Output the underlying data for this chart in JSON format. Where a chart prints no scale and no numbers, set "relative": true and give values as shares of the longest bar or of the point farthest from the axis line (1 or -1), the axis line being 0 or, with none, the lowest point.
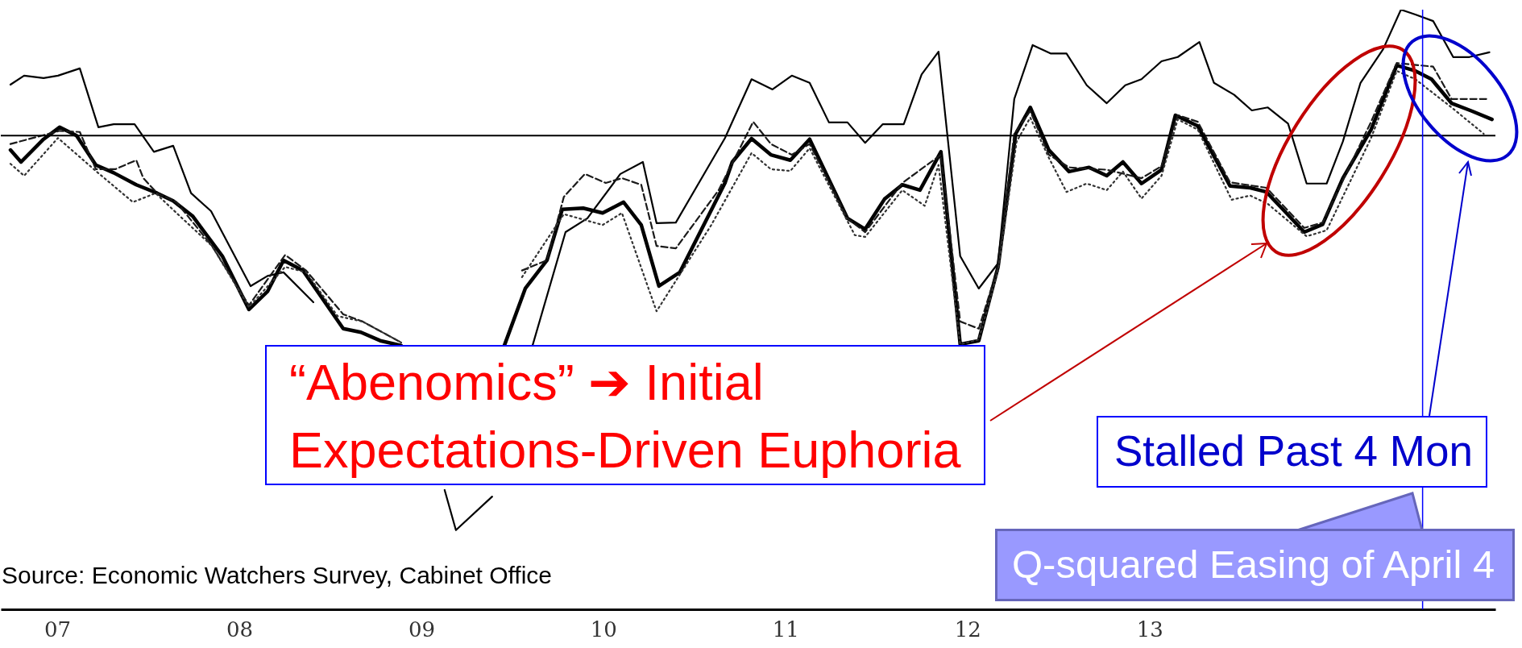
{
  "chart_data": {
    "type": "line",
    "relative": true,
    "xlim": [
      2006.69,
      2014.9
    ],
    "xticks": [
      {
        "value": 2007,
        "label": "07"
      },
      {
        "value": 2008,
        "label": "08"
      },
      {
        "value": 2009,
        "label": "09"
      },
      {
        "value": 2010,
        "label": "10"
      },
      {
        "value": 2011,
        "label": "11"
      },
      {
        "value": 2012,
        "label": "12"
      },
      {
        "value": 2013,
        "label": "13"
      }
    ],
    "series": [
      {
        "color": "#000000",
        "line_style": "solid",
        "x": [
          2006.743,
          2006.818,
          2006.925,
          2007.004,
          2007.124,
          2007.226,
          2007.31,
          2007.425,
          2007.531,
          2007.637,
          2007.735,
          2007.845,
          2008.062,
          2008.155,
          2008.243,
          2008.407,
          2008.531,
          2008.83,
          2009.128,
          2009.19,
          2009.389,
          2009.5,
          2009.611,
          2009.792,
          2009.912,
          2010.093,
          2010.217,
          2010.292,
          2010.398,
          2010.668,
          2010.814,
          2010.929,
          2011.035,
          2011.133,
          2011.239,
          2011.341,
          2011.438,
          2011.535,
          2011.65,
          2011.748,
          2011.841,
          2011.96,
          2012.062,
          2012.168,
          2012.257,
          2012.358,
          2012.456,
          2012.544,
          2012.655,
          2012.765,
          2012.867,
          2012.956,
          2013.066,
          2013.155,
          2013.274,
          2013.354,
          2013.465,
          2013.562,
          2013.65,
          2013.761,
          2013.863,
          2013.973,
          2014.062,
          2014.159,
          2014.283,
          2014.381,
          2014.46,
          2014.558,
          2014.668,
          2014.757,
          2014.867
        ],
        "values": [
          0.875,
          0.89,
          0.886,
          0.89,
          0.902,
          0.804,
          0.809,
          0.809,
          0.763,
          0.773,
          0.694,
          0.664,
          0.539,
          0.556,
          0.562,
          0.512,
          null,
          null,
          0.199,
          0.132,
          0.188,
          null,
          0.44,
          0.629,
          0.652,
          0.726,
          0.746,
          0.644,
          0.645,
          0.786,
          0.884,
          0.867,
          0.89,
          0.878,
          0.812,
          0.812,
          0.778,
          0.809,
          0.809,
          0.892,
          0.93,
          0.589,
          0.535,
          0.577,
          0.851,
          0.941,
          0.927,
          0.927,
          0.874,
          0.844,
          0.874,
          0.884,
          0.914,
          0.921,
          0.946,
          0.878,
          0.858,
          0.832,
          0.837,
          0.81,
          0.71,
          0.71,
          0.78,
          0.878,
          0.934,
          1,
          0.992,
          0.981,
          0.921,
          0.921,
          0.929
        ]
      },
      {
        "color": "#000000",
        "line_style": "solid",
        "x": [
          2006.743,
          2006.801,
          2006.925,
          2007.013,
          2007.106,
          2007.212,
          2007.31,
          2007.434,
          2007.549,
          2007.637,
          2007.743,
          2007.907,
          2008.053,
          2008.155,
          2008.243,
          2008.35,
          2008.571,
          2008.668,
          2008.774,
          2008.889,
          2009.17,
          2009.456,
          2009.571,
          2009.69,
          2009.774,
          2009.889,
          2009.996,
          2010.111,
          2010.208,
          2010.305,
          2010.42,
          2010.668,
          2010.708,
          2010.814,
          2010.92,
          2011.027,
          2011.133,
          2011.341,
          2011.438,
          2011.544,
          2011.642,
          2011.739,
          2011.854,
          2011.96,
          2012.062,
          2012.168,
          2012.265,
          2012.345,
          2012.447,
          2012.558,
          2012.668,
          2012.765,
          2012.854,
          2012.956,
          2013.066,
          2013.142,
          2013.265,
          2013.442,
          2013.553,
          2013.642,
          2013.739,
          2013.85,
          2013.951,
          2014.062,
          2014.217,
          2014.358,
          2014.46,
          2014.549,
          2014.659,
          2014.77,
          2014.881
        ],
        "values": [
          0.766,
          0.746,
          0.784,
          0.804,
          0.79,
          0.741,
          0.728,
          0.708,
          0.694,
          0.681,
          0.656,
          0.589,
          0.5,
          0.53,
          0.582,
          0.565,
          0.468,
          0.462,
          0.448,
          0.44,
          null,
          0.44,
          0.535,
          0.582,
          0.667,
          0.669,
          0.661,
          0.679,
          0.641,
          0.539,
          0.562,
          0.711,
          0.746,
          0.785,
          0.758,
          0.749,
          0.784,
          0.652,
          0.634,
          0.684,
          0.708,
          0.699,
          0.763,
          0.442,
          0.448,
          0.571,
          0.793,
          0.837,
          0.766,
          0.73,
          0.737,
          0.723,
          0.746,
          0.71,
          0.733,
          0.824,
          0.806,
          0.706,
          0.703,
          0.696,
          0.665,
          0.629,
          0.642,
          0.719,
          0.8,
          0.907,
          0.898,
          0.884,
          0.844,
          0.831,
          0.817
        ]
      },
      {
        "color": "#1a1a1a",
        "line_style": "dashed",
        "x": [
          2006.743,
          2007.013,
          2007.124,
          2007.212,
          2007.319,
          2007.434,
          2007.473,
          2007.549,
          2007.655,
          2007.85,
          2008.053,
          2008.252,
          2008.367,
          2008.571,
          2008.677,
          2008.889,
          2009.22,
          2009.553,
          2009.69,
          2009.783,
          2009.898,
          2010.013,
          2010.102,
          2010.208,
          2010.292,
          2010.398,
          2010.633,
          2010.823,
          2010.92,
          2011.035,
          2011.133,
          2011.341,
          2011.438,
          2011.642,
          2011.854,
          2011.96,
          2012.062,
          2012.168,
          2012.257,
          2012.345,
          2012.447,
          2012.558,
          2012.765,
          2012.956,
          2013.066,
          2013.155,
          2013.265,
          2013.442,
          2013.642,
          2013.85,
          2013.951,
          2014.217,
          2014.358,
          2014.558,
          2014.659,
          2014.867
        ],
        "values": [
          0.776,
          0.798,
          0.796,
          0.734,
          0.734,
          0.749,
          0.719,
          0.694,
          0.679,
          0.606,
          0.507,
          0.591,
          0.565,
          0.492,
          0.48,
          0.445,
          null,
          0.565,
          0.582,
          0.688,
          0.726,
          0.711,
          0.719,
          0.708,
          0.606,
          0.602,
          0.699,
          0.813,
          0.776,
          0.758,
          0.776,
          0.652,
          0.629,
          0.711,
          0.758,
          0.48,
          0.468,
          0.571,
          0.793,
          0.831,
          0.758,
          0.737,
          0.733,
          0.719,
          0.739,
          0.824,
          0.813,
          0.712,
          0.703,
          0.636,
          0.645,
          0.813,
          0.911,
          0.905,
          0.851,
          0.851
        ]
      },
      {
        "color": "#333333",
        "line_style": "dotted",
        "x": [
          2006.743,
          2006.818,
          2007.004,
          2007.212,
          2007.416,
          2007.54,
          2007.655,
          2007.85,
          2008.053,
          2008.252,
          2008.367,
          2008.54,
          2008.677,
          2008.889,
          2009.22,
          2009.553,
          2009.783,
          2009.996,
          2010.102,
          2010.292,
          2010.593,
          2010.814,
          2010.92,
          2011.027,
          2011.133,
          2011.381,
          2011.438,
          2011.642,
          2011.765,
          2011.841,
          2011.96,
          2012.062,
          2012.168,
          2012.27,
          2012.345,
          2012.447,
          2012.544,
          2012.655,
          2012.765,
          2012.854,
          2012.956,
          2013.066,
          2013.155,
          2013.265,
          2013.451,
          2013.553,
          2013.65,
          2013.863,
          2013.973,
          2014.217,
          2014.358,
          2014.46,
          2014.659,
          2014.836
        ],
        "values": [
          0.743,
          0.723,
          0.786,
          0.731,
          0.679,
          0.694,
          0.661,
          0.606,
          0.504,
          0.571,
          0.562,
          0.489,
          0.48,
          0.445,
          null,
          0.554,
          0.659,
          0.641,
          0.661,
          0.497,
          0.641,
          0.761,
          0.734,
          0.731,
          0.769,
          0.624,
          0.621,
          0.699,
          0.673,
          0.741,
          0.442,
          0.45,
          0.565,
          0.78,
          0.82,
          0.753,
          0.696,
          0.71,
          0.699,
          0.73,
          0.685,
          0.723,
          0.817,
          0.8,
          0.683,
          0.69,
          0.676,
          0.622,
          0.632,
          0.786,
          0.898,
          0.884,
          0.837,
          0.793
        ]
      }
    ],
    "ref_lines": [
      {
        "axis": "y",
        "value": 0.79,
        "color": "#000000"
      },
      {
        "axis": "x",
        "value": 2014.5,
        "color": "#0000ff"
      }
    ],
    "annotations": [
      "“Abenomics” ➔ Initial Expectations-Driven Euphoria",
      "Stalled Past 4 Mon",
      "Q-squared Easing of April 4",
      "Source: Economic Watchers Survey, Cabinet Office"
    ]
  }
}
